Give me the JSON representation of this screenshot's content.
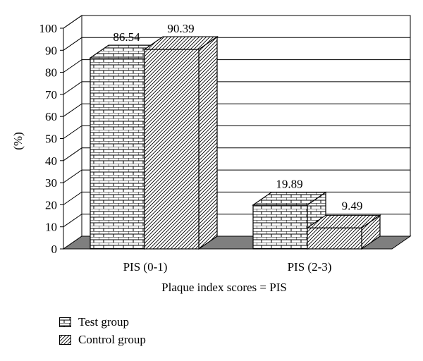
{
  "chart_data": {
    "type": "bar",
    "categories": [
      "PIS (0-1)",
      "PIS (2-3)"
    ],
    "series": [
      {
        "name": "Test group",
        "values": [
          86.54,
          19.89
        ],
        "data_labels": [
          "86.54",
          "19.89"
        ],
        "pattern": "brick"
      },
      {
        "name": "Control group",
        "values": [
          90.39,
          9.49
        ],
        "data_labels": [
          "90.39",
          "9.49"
        ],
        "pattern": "diagonal-hatch"
      }
    ],
    "xlabel": "Plaque index scores = PIS",
    "ylabel": "(%)",
    "ylim": [
      0,
      100
    ],
    "yticks": [
      "0",
      "10",
      "20",
      "30",
      "40",
      "50",
      "60",
      "70",
      "80",
      "90",
      "100"
    ],
    "grid": true,
    "three_d": true,
    "legend_position": "bottom-left",
    "colors": {
      "floor": "#7f7f7f",
      "bar_face": "#ffffff",
      "stroke": "#000000"
    }
  }
}
